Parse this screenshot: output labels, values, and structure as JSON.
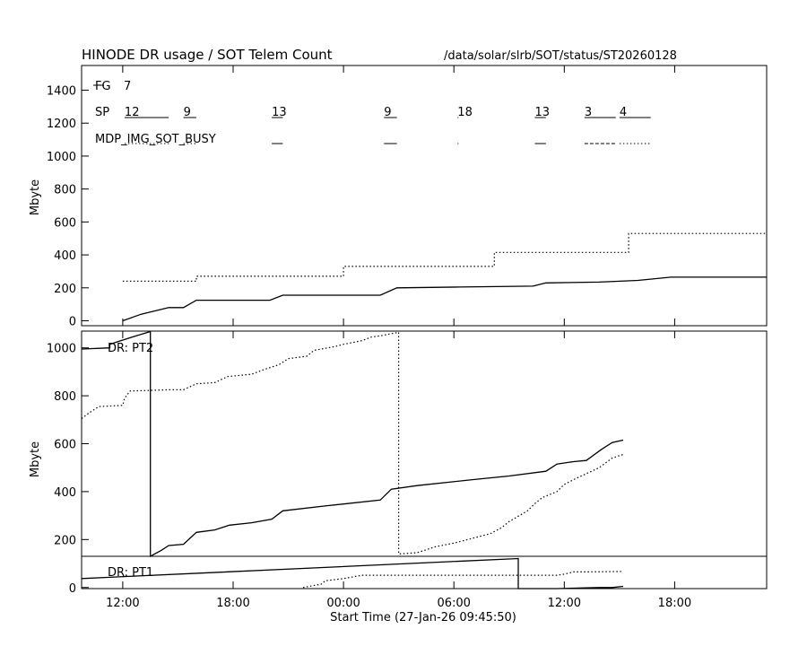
{
  "page": {
    "title": "HINODE DR usage / SOT Telem Count",
    "path": "/data/solar/slrb/SOT/status/ST20260128",
    "x_axis_label": "Start Time (27-Jan-26 09:45:50)",
    "x_tick_labels": [
      "12:00",
      "18:00",
      "00:00",
      "06:00",
      "12:00",
      "18:00"
    ]
  },
  "chart_data": [
    {
      "type": "line",
      "title": "HINODE DR usage / SOT Telem Count",
      "ylabel": "Mbyte",
      "xlabel": "",
      "x_unit": "hours since 27-Jan-26 00:00",
      "xlim": [
        9.7639,
        47.0
      ],
      "ylim": [
        -30,
        1550
      ],
      "yticks": [
        0,
        200,
        400,
        600,
        800,
        1000,
        1200,
        1400
      ],
      "annotations": {
        "fg": {
          "label": "FG",
          "value": "7"
        },
        "sp": {
          "label": "SP",
          "values": [
            {
              "text": "12",
              "x0": 12.1,
              "x1": 14.5
            },
            {
              "text": "9",
              "x0": 15.3,
              "x1": 16.0
            },
            {
              "text": "13",
              "x0": 20.1,
              "x1": 20.7
            },
            {
              "text": "9",
              "x0": 26.2,
              "x1": 26.9
            },
            {
              "text": "18",
              "x0": 30.2,
              "x1": 30.25
            },
            {
              "text": "13",
              "x0": 34.4,
              "x1": 35.0
            },
            {
              "text": "3",
              "x0": 37.1,
              "x1": 38.8
            },
            {
              "text": "4",
              "x0": 39.0,
              "x1": 40.7
            }
          ]
        },
        "busy": {
          "label": "MDP_IMG_SOT_BUSY",
          "segments": [
            {
              "x0": 12.1,
              "x1": 14.5,
              "style": "dotted"
            },
            {
              "x0": 15.3,
              "x1": 16.0,
              "style": "dotted"
            },
            {
              "x0": 20.1,
              "x1": 20.7,
              "style": "solid"
            },
            {
              "x0": 26.2,
              "x1": 26.9,
              "style": "solid"
            },
            {
              "x0": 30.2,
              "x1": 30.25,
              "style": "solid"
            },
            {
              "x0": 34.4,
              "x1": 35.0,
              "style": "solid"
            },
            {
              "x0": 37.1,
              "x1": 38.8,
              "style": "dashed"
            },
            {
              "x0": 39.0,
              "x1": 40.7,
              "style": "dotted"
            }
          ]
        }
      },
      "series": [
        {
          "style": "solid",
          "points": [
            [
              12.0,
              0
            ],
            [
              13.0,
              40
            ],
            [
              14.5,
              80
            ],
            [
              15.3,
              80
            ],
            [
              16.0,
              125
            ],
            [
              20.0,
              125
            ],
            [
              20.7,
              155
            ],
            [
              26.0,
              155
            ],
            [
              26.9,
              200
            ],
            [
              30.3,
              205
            ],
            [
              34.3,
              210
            ],
            [
              35.0,
              230
            ],
            [
              37.9,
              235
            ],
            [
              40.0,
              245
            ],
            [
              41.8,
              265
            ],
            [
              47.0,
              265
            ]
          ]
        },
        {
          "style": "dotted",
          "points": [
            [
              12.0,
              240
            ],
            [
              16.0,
              240
            ],
            [
              16.0,
              270
            ],
            [
              24.0,
              270
            ],
            [
              24.0,
              330
            ],
            [
              32.2,
              330
            ],
            [
              32.2,
              415
            ],
            [
              39.5,
              415
            ],
            [
              39.5,
              530
            ],
            [
              47.0,
              530
            ]
          ]
        }
      ]
    },
    {
      "type": "line",
      "title": "DR: PT2",
      "ylabel": "Mbyte",
      "xlabel": "",
      "x_unit": "hours since 27-Jan-26 00:00",
      "xlim": [
        9.7639,
        47.0
      ],
      "ylim": [
        130,
        1070
      ],
      "yticks": [
        200,
        400,
        600,
        800,
        1000
      ],
      "series": [
        {
          "style": "solid",
          "points": [
            [
              9.7639,
              995
            ],
            [
              11.3,
              1000
            ],
            [
              11.3,
              1015
            ],
            [
              12.5,
              1045
            ],
            [
              13.5,
              1068
            ],
            [
              13.5,
              130
            ],
            [
              14.1,
              155
            ],
            [
              14.5,
              175
            ],
            [
              15.3,
              180
            ],
            [
              16.0,
              230
            ],
            [
              17.0,
              240
            ],
            [
              17.8,
              260
            ],
            [
              19.0,
              270
            ],
            [
              20.1,
              285
            ],
            [
              20.7,
              320
            ],
            [
              23.0,
              340
            ],
            [
              26.0,
              365
            ],
            [
              26.6,
              410
            ],
            [
              28.0,
              425
            ],
            [
              31.0,
              450
            ],
            [
              33.0,
              465
            ],
            [
              35.0,
              485
            ],
            [
              35.6,
              515
            ],
            [
              36.5,
              525
            ],
            [
              37.2,
              530
            ],
            [
              38.0,
              575
            ],
            [
              38.6,
              605
            ],
            [
              39.2,
              615
            ]
          ]
        },
        {
          "style": "dotted",
          "points": [
            [
              9.7639,
              705
            ],
            [
              10.2,
              730
            ],
            [
              10.7,
              755
            ],
            [
              12.0,
              760
            ],
            [
              12.1,
              790
            ],
            [
              12.4,
              820
            ],
            [
              14.5,
              825
            ],
            [
              15.3,
              825
            ],
            [
              16.0,
              850
            ],
            [
              17.0,
              855
            ],
            [
              17.7,
              880
            ],
            [
              19.0,
              890
            ],
            [
              19.7,
              910
            ],
            [
              20.5,
              930
            ],
            [
              21.0,
              955
            ],
            [
              22.0,
              965
            ],
            [
              22.4,
              990
            ],
            [
              23.5,
              1005
            ],
            [
              24.0,
              1015
            ],
            [
              25.0,
              1030
            ],
            [
              25.5,
              1045
            ],
            [
              26.0,
              1050
            ],
            [
              27.0,
              1065
            ],
            [
              27.0,
              140
            ],
            [
              28.0,
              145
            ],
            [
              29.0,
              170
            ],
            [
              30.0,
              185
            ],
            [
              31.0,
              205
            ],
            [
              32.0,
              225
            ],
            [
              32.6,
              250
            ],
            [
              33.0,
              275
            ],
            [
              34.0,
              320
            ],
            [
              34.4,
              350
            ],
            [
              34.8,
              375
            ],
            [
              35.6,
              400
            ],
            [
              36.0,
              430
            ],
            [
              36.5,
              450
            ],
            [
              37.2,
              475
            ],
            [
              37.9,
              500
            ],
            [
              38.6,
              540
            ],
            [
              39.2,
              555
            ]
          ]
        }
      ]
    },
    {
      "type": "line",
      "title": "DR: PT1",
      "ylabel": "",
      "xlabel": "Start Time (27-Jan-26 09:45:50)",
      "x_unit": "hours since 27-Jan-26 00:00",
      "xlim": [
        9.7639,
        47.0
      ],
      "ylim": [
        -5,
        140
      ],
      "yticks": [
        0
      ],
      "series": [
        {
          "style": "solid",
          "points": [
            [
              9.7639,
              40
            ],
            [
              33.5,
              130
            ],
            [
              33.5,
              -5
            ],
            [
              35.6,
              -5
            ],
            [
              37.9,
              0
            ],
            [
              38.6,
              0
            ],
            [
              39.2,
              5
            ]
          ]
        },
        {
          "style": "dotted",
          "points": [
            [
              21.8,
              0
            ],
            [
              22.8,
              15
            ],
            [
              23.0,
              30
            ],
            [
              24.0,
              40
            ],
            [
              25.0,
              55
            ],
            [
              35.6,
              55
            ],
            [
              36.0,
              60
            ],
            [
              36.5,
              70
            ],
            [
              37.2,
              70
            ],
            [
              39.2,
              72
            ]
          ]
        }
      ]
    }
  ]
}
